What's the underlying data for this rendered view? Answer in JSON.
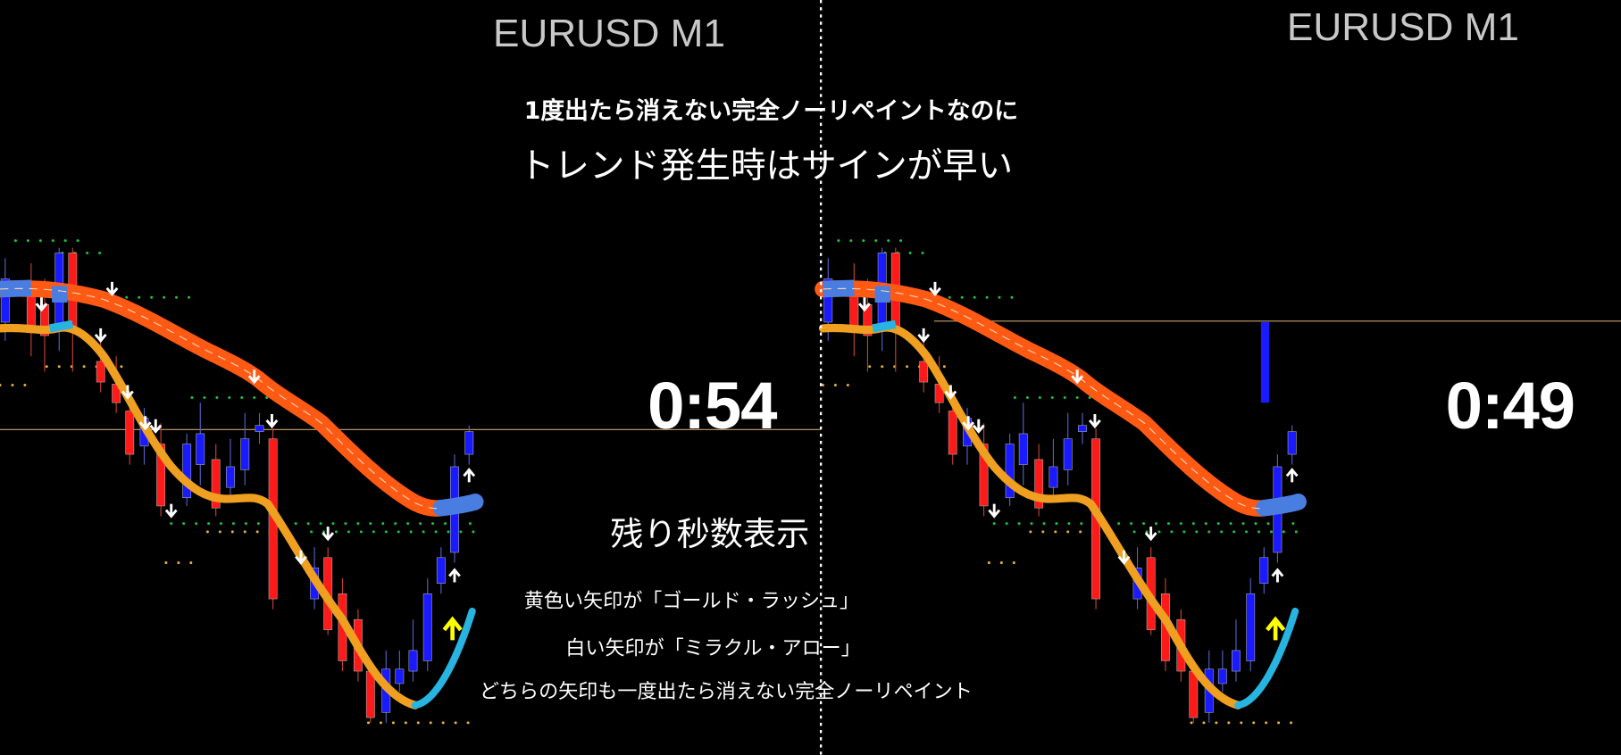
{
  "left_chart": {
    "symbol": "EURUSD M1",
    "countdown": "0:54"
  },
  "right_chart": {
    "symbol": "EURUSD M1",
    "countdown": "0:49"
  },
  "captions": {
    "headline": "1度出たら消えない完全ノーリペイントなのに",
    "subheadline": "トレンド発生時はサインが早い",
    "countdown_label": "残り秒数表示",
    "yellow_arrow_note": "黄色い矢印が「ゴールド・ラッシュ」",
    "white_arrow_note": "白い矢印が「ミラクル・アロー」",
    "repaint_note": "どちらの矢印も一度出たら消えない完全ノーリペイント"
  },
  "colors": {
    "bull_candle": "#1a1aff",
    "bear_candle": "#ff1a1a",
    "slow_ma": "#ff5a14",
    "slow_ma_up": "#4a7de0",
    "fast_ma": "#f0a020",
    "fast_ma_up": "#28b4e0",
    "price_line": "#c8a070",
    "gold_rush_arrow": "#ffff00",
    "miracle_arrow": "#ffffff"
  }
}
